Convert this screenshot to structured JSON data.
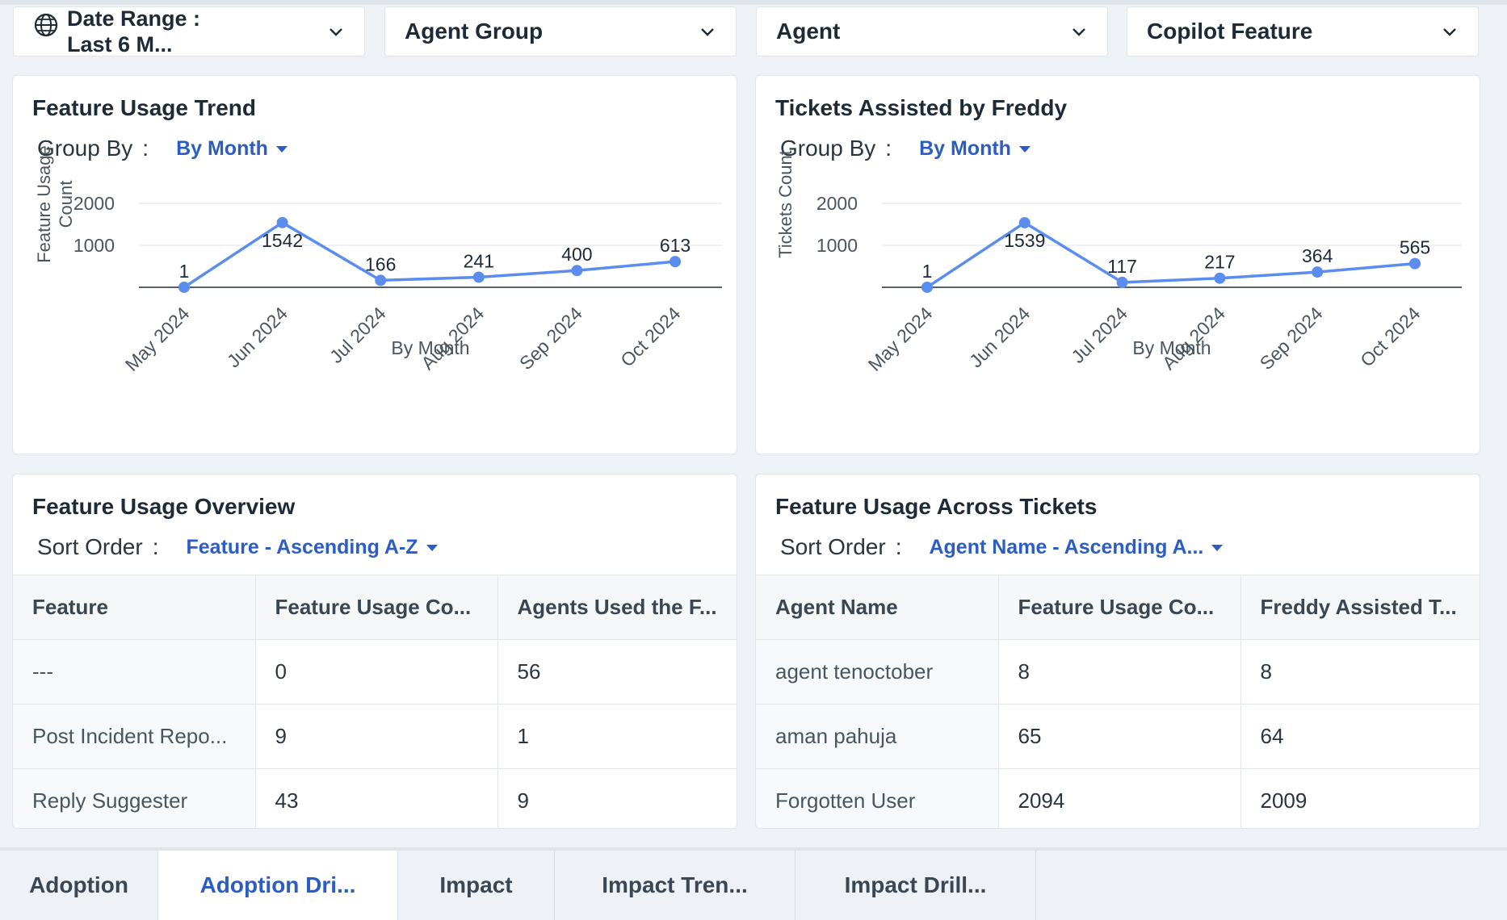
{
  "filters": [
    {
      "label": "Date Range : Last 6 M...",
      "line1": "Date Range :",
      "line2": "Last 6 M...",
      "icon": "globe-icon"
    },
    {
      "label": "Agent Group"
    },
    {
      "label": "Agent"
    },
    {
      "label": "Copilot Feature"
    }
  ],
  "cards": {
    "usage_trend": {
      "title": "Feature Usage Trend",
      "control_label": "Group By",
      "control_value": "By Month"
    },
    "tickets_assisted": {
      "title": "Tickets Assisted by Freddy",
      "control_label": "Group By",
      "control_value": "By Month"
    },
    "usage_overview": {
      "title": "Feature Usage Overview",
      "control_label": "Sort Order",
      "control_value": "Feature - Ascending A-Z",
      "columns": [
        "Feature",
        "Feature Usage Co...",
        "Agents Used the F..."
      ],
      "rows": [
        [
          "---",
          "0",
          "56"
        ],
        [
          "Post Incident Repo...",
          "9",
          "1"
        ],
        [
          "Reply Suggester",
          "43",
          "9"
        ]
      ]
    },
    "usage_across_tickets": {
      "title": "Feature Usage Across Tickets",
      "control_label": "Sort Order",
      "control_value": "Agent Name - Ascending A...",
      "columns": [
        "Agent Name",
        "Feature Usage Co...",
        "Freddy Assisted T..."
      ],
      "rows": [
        [
          "agent tenoctober",
          "8",
          "8"
        ],
        [
          "aman pahuja",
          "65",
          "64"
        ],
        [
          "Forgotten User",
          "2094",
          "2009"
        ]
      ]
    }
  },
  "chart_data": [
    {
      "type": "line",
      "title": "Feature Usage Trend",
      "xlabel": "By Month",
      "ylabel": "Feature Usage Count",
      "categories": [
        "May 2024",
        "Jun 2024",
        "Jul 2024",
        "Aug 2024",
        "Sep 2024",
        "Oct 2024"
      ],
      "values": [
        1,
        1542,
        166,
        241,
        400,
        613
      ],
      "yticks": [
        1000,
        2000
      ],
      "ylim": [
        0,
        2000
      ],
      "color": "#5b8def",
      "data_labels": true
    },
    {
      "type": "line",
      "title": "Tickets Assisted by Freddy",
      "xlabel": "By Month",
      "ylabel": "Tickets Count",
      "categories": [
        "May 2024",
        "Jun 2024",
        "Jul 2024",
        "Aug 2024",
        "Sep 2024",
        "Oct 2024"
      ],
      "values": [
        1,
        1539,
        117,
        217,
        364,
        565
      ],
      "yticks": [
        1000,
        2000
      ],
      "ylim": [
        0,
        2000
      ],
      "color": "#5b8def",
      "data_labels": true
    }
  ],
  "tabs": [
    {
      "label": "Adoption",
      "active": false
    },
    {
      "label": "Adoption Dri...",
      "active": true
    },
    {
      "label": "Impact",
      "active": false
    },
    {
      "label": "Impact Tren...",
      "active": false
    },
    {
      "label": "Impact Drill...",
      "active": false
    }
  ],
  "colors": {
    "accent": "#2c5cc5",
    "line": "#5b8def",
    "background": "#eef1f5"
  }
}
